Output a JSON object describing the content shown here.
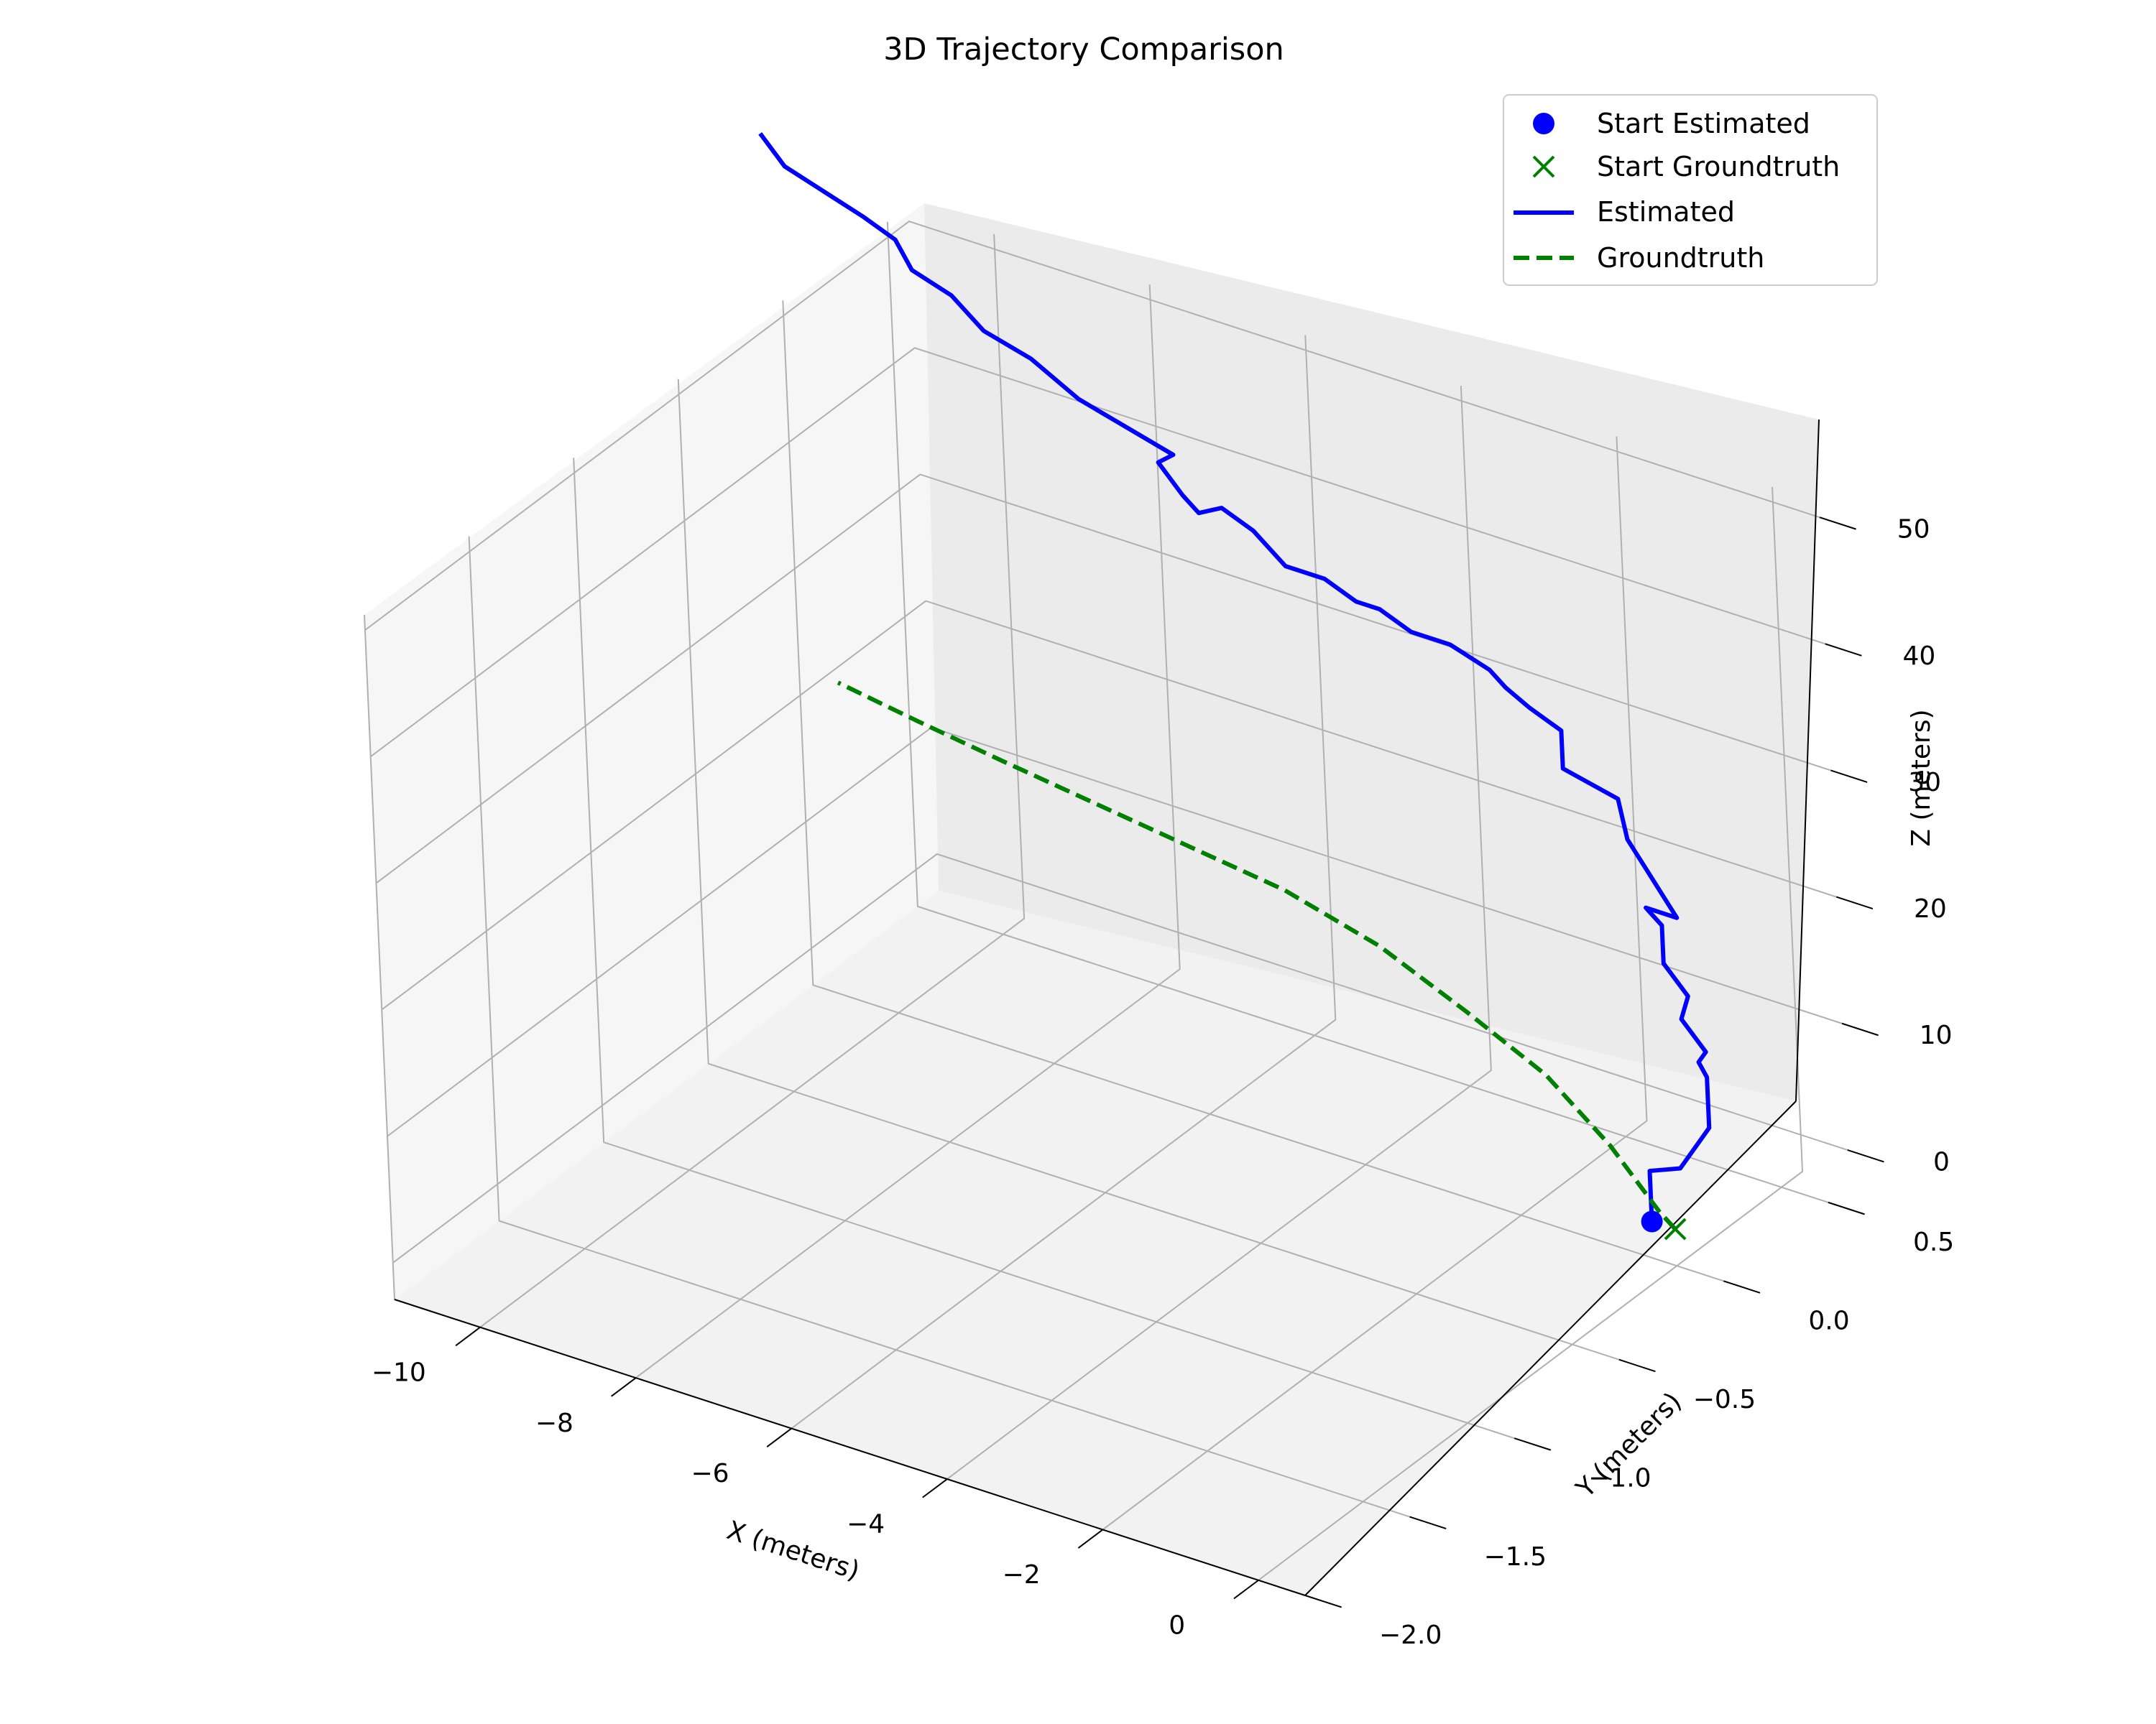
{
  "chart_data": {
    "type": "line",
    "projection": "3d",
    "title": "3D Trajectory Comparison",
    "xlabel": "X (meters)",
    "ylabel": "Y (meters)",
    "zlabel": "Z (meters)",
    "xlim": [
      -11.1,
      0.6
    ],
    "ylim": [
      -2.0,
      0.6
    ],
    "zlim": [
      -2.9,
      51.2
    ],
    "x_ticks": [
      -10,
      -8,
      -6,
      -4,
      -2,
      0
    ],
    "x_tick_labels": [
      "−10",
      "−8",
      "−6",
      "−4",
      "−2",
      "0"
    ],
    "y_ticks": [
      -2.0,
      -1.5,
      -1.0,
      -0.5,
      0.0,
      0.5
    ],
    "y_tick_labels": [
      "−2.0",
      "−1.5",
      "−1.0",
      "−0.5",
      "0.0",
      "0.5"
    ],
    "z_ticks": [
      0,
      10,
      20,
      30,
      40,
      50
    ],
    "z_tick_labels": [
      "0",
      "10",
      "20",
      "30",
      "40",
      "50"
    ],
    "grid": true,
    "legend_position": "top-right",
    "series": [
      {
        "name": "Estimated",
        "style": "solid",
        "color": "#0000ff",
        "x": [
          -0.3,
          -0.3,
          0.1,
          0.5,
          0.5,
          0.4,
          0.5,
          0.2,
          0.3,
          0.0,
          0.0,
          -0.2,
          0.2,
          -0.4,
          -0.5,
          -1.2,
          -1.2,
          -1.6,
          -1.9,
          -2.1,
          -2.6,
          -3.1,
          -3.5,
          -3.8,
          -4.2,
          -4.7,
          -5.1,
          -5.5,
          -5.8,
          -6.0,
          -6.3,
          -6.1,
          -6.7,
          -7.3,
          -7.9,
          -8.5,
          -8.9,
          -9.4,
          -9.6,
          -10.0,
          -10.5,
          -11.0,
          -11.3
        ],
        "y": [
          0.0,
          0.0,
          0.0,
          0.0,
          0.0,
          0.0,
          0.0,
          0.0,
          0.0,
          0.0,
          0.0,
          0.0,
          0.0,
          0.0,
          0.0,
          0.0,
          0.0,
          0.0,
          0.0,
          0.0,
          0.0,
          0.0,
          0.0,
          0.0,
          0.0,
          0.0,
          0.0,
          0.0,
          0.0,
          0.0,
          0.0,
          0.0,
          0.0,
          0.0,
          0.0,
          0.0,
          0.0,
          0.0,
          0.0,
          0.0,
          0.0,
          0.0,
          0.0
        ],
        "z": [
          0.0,
          4.0,
          5.0,
          9.0,
          13.0,
          14.0,
          15.0,
          17.0,
          19.0,
          21.0,
          24.0,
          25.0,
          25.0,
          30.0,
          33.0,
          34.0,
          37.0,
          38.0,
          39.0,
          40.0,
          41.0,
          41.0,
          42.0,
          42.0,
          43.0,
          43.0,
          45.0,
          46.0,
          45.0,
          46.0,
          48.0,
          49.0,
          50.0,
          51.0,
          53.0,
          54.0,
          56.0,
          57.0,
          59.0,
          60.0,
          61.0,
          62.0,
          64.0
        ]
      },
      {
        "name": "Groundtruth",
        "style": "dashed",
        "color": "#008000",
        "x": [
          0.0,
          -0.2,
          -0.8,
          -1.6,
          -2.6,
          -3.7,
          -4.9,
          -6.1,
          -7.3,
          -8.5,
          -9.6,
          -10.6
        ],
        "y": [
          0.0,
          0.0,
          0.0,
          0.0,
          0.0,
          0.0,
          0.0,
          0.0,
          0.0,
          0.0,
          0.0,
          0.0
        ],
        "z": [
          0.0,
          1.0,
          5.0,
          9.0,
          12.0,
          15.0,
          17.0,
          18.0,
          19.0,
          20.0,
          21.0,
          22.0
        ]
      }
    ],
    "markers": [
      {
        "name": "Start Estimated",
        "shape": "circle",
        "color": "#0000ff",
        "x": -0.3,
        "y": 0.0,
        "z": 0.0
      },
      {
        "name": "Start Groundtruth",
        "shape": "x",
        "color": "#008000",
        "x": 0.0,
        "y": 0.0,
        "z": 0.0
      }
    ],
    "legend": [
      "Start Estimated",
      "Start Groundtruth",
      "Estimated",
      "Groundtruth"
    ]
  }
}
